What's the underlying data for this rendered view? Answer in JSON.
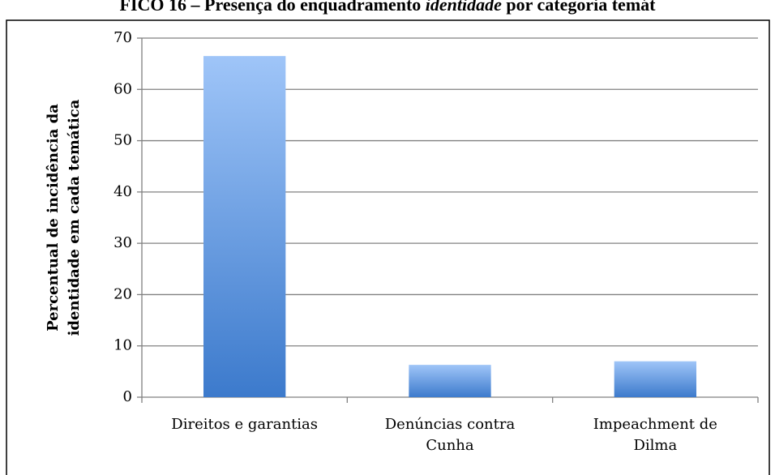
{
  "chart_data": {
    "type": "bar",
    "title_parts": [
      "FICO 16 – Presença do enquadramento ",
      "identidade",
      " por categoria temát"
    ],
    "y_label": "Percentual de incidência da\nidentidade em cada temática",
    "categories": [
      "Direitos e garantias",
      "Denúncias contra\nCunha",
      "Impeachment de\nDilma"
    ],
    "values": [
      66.5,
      6.3,
      7
    ],
    "color": [
      "#9fc5f8",
      "#3c7acc"
    ],
    "ylim": [
      0,
      70
    ],
    "yticks": [
      0,
      10,
      20,
      30,
      40,
      50,
      60,
      70
    ],
    "grid": true
  }
}
